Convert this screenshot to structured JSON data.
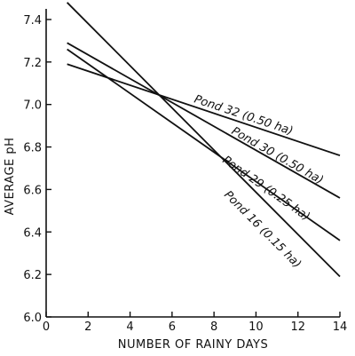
{
  "chart_data": {
    "type": "line",
    "title": "",
    "xlabel": "NUMBER OF RAINY DAYS",
    "ylabel": "AVERAGE pH",
    "xlim": [
      0,
      14
    ],
    "ylim": [
      6.0,
      7.45
    ],
    "x_ticks": [
      "0",
      "2",
      "4",
      "6",
      "8",
      "10",
      "12",
      "14"
    ],
    "y_ticks": [
      "6.0",
      "6.2",
      "6.4",
      "6.6",
      "6.8",
      "7.0",
      "7.2",
      "7.4"
    ],
    "grid": false,
    "legend": "inline labels at line ends",
    "series": [
      {
        "name": "Pond 32 (0.50 ha)",
        "x": [
          1,
          14
        ],
        "y": [
          7.19,
          6.76
        ]
      },
      {
        "name": "Pond 30 (0.50 ha)",
        "x": [
          1,
          14
        ],
        "y": [
          7.29,
          6.56
        ]
      },
      {
        "name": "Pond 29 (0.25 ha)",
        "x": [
          1,
          14
        ],
        "y": [
          7.26,
          6.36
        ]
      },
      {
        "name": "Pond 16 (0.15 ha)",
        "x": [
          1,
          14
        ],
        "y": [
          7.48,
          6.19
        ]
      }
    ]
  }
}
